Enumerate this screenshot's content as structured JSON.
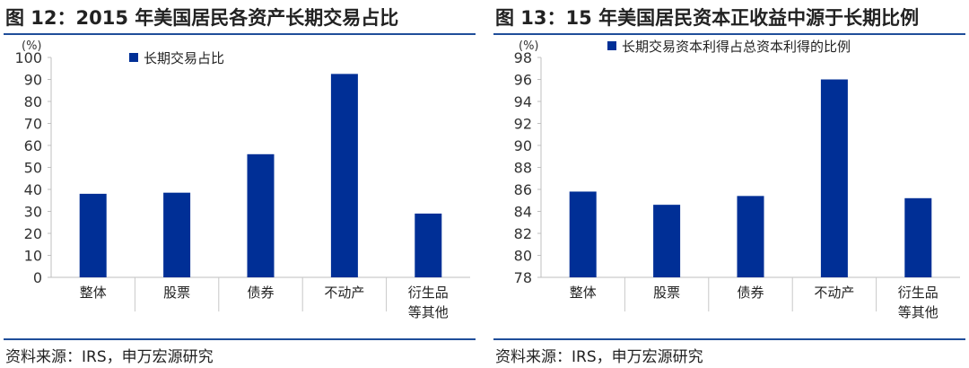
{
  "source": "资料来源：IRS，申万宏源研究",
  "colors": {
    "bar": "#002f96",
    "rule": "#1f4e9a",
    "axis": "#bfbfbf",
    "separator": "#c8c8c8"
  },
  "chart_data": [
    {
      "type": "bar",
      "title": "图 12：2015 年美国居民各资产长期交易占比",
      "unit": "(%)",
      "categories": [
        "整体",
        "股票",
        "债券",
        "不动产",
        "衍生品等其他"
      ],
      "category_lines": [
        [
          "整体"
        ],
        [
          "股票"
        ],
        [
          "债券"
        ],
        [
          "不动产"
        ],
        [
          "衍生品",
          "等其他"
        ]
      ],
      "series": [
        {
          "name": "长期交易占比",
          "values": [
            38,
            38.5,
            56,
            92.5,
            29
          ]
        }
      ],
      "yticks": [
        "0",
        "10",
        "20",
        "30",
        "40",
        "50",
        "60",
        "70",
        "80",
        "90",
        "100"
      ],
      "ylim": [
        0,
        100
      ],
      "xlabel": "",
      "ylabel": "",
      "grid": false,
      "legend": "top-left"
    },
    {
      "type": "bar",
      "title": "图 13：15 年美国居民资本正收益中源于长期比例",
      "unit": "(%)",
      "categories": [
        "整体",
        "股票",
        "债券",
        "不动产",
        "衍生品等其他"
      ],
      "category_lines": [
        [
          "整体"
        ],
        [
          "股票"
        ],
        [
          "债券"
        ],
        [
          "不动产"
        ],
        [
          "衍生品",
          "等其他"
        ]
      ],
      "series": [
        {
          "name": "长期交易资本利得占总资本利得的比例",
          "values": [
            85.8,
            84.6,
            85.4,
            96,
            85.2
          ]
        }
      ],
      "yticks": [
        "78",
        "80",
        "82",
        "84",
        "86",
        "88",
        "90",
        "92",
        "94",
        "96",
        "98"
      ],
      "ylim": [
        78,
        98
      ],
      "xlabel": "",
      "ylabel": "",
      "grid": false,
      "legend": "top"
    }
  ]
}
